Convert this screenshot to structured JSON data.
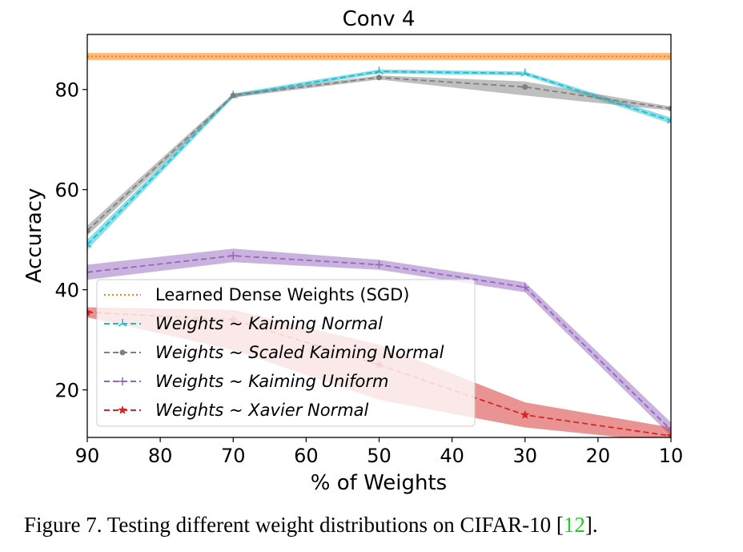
{
  "caption": {
    "prefix": "Figure 7. Testing different weight distributions on CIFAR-10 [",
    "ref": "12",
    "suffix": "]."
  },
  "chart_data": {
    "type": "line",
    "title": "Conv 4",
    "xlabel": "% of Weights",
    "ylabel": "Accuracy",
    "x_reversed": true,
    "xlim": [
      90,
      10
    ],
    "ylim": [
      10.5,
      91
    ],
    "xticks": [
      90,
      80,
      70,
      60,
      50,
      40,
      30,
      20,
      10
    ],
    "yticks": [
      20,
      40,
      60,
      80
    ],
    "legend_position": "lower-left",
    "grid": false,
    "reference_line": {
      "name": "Learned Dense Weights (SGD)",
      "value": 86.6,
      "band": [
        85.9,
        87.3
      ],
      "color": "#ff7f0e",
      "style": "dotted"
    },
    "series": [
      {
        "name": "Weights ~ Kaiming Normal",
        "color": "#17becf",
        "marker": "tri",
        "x": [
          90,
          70,
          50,
          30,
          10
        ],
        "values": [
          49.0,
          78.8,
          83.6,
          83.2,
          73.8
        ],
        "lower": [
          48.0,
          78.4,
          83.2,
          82.8,
          73.2
        ],
        "upper": [
          50.0,
          79.2,
          84.0,
          83.6,
          74.4
        ]
      },
      {
        "name": "Weights ~ Scaled Kaiming Normal",
        "color": "#7f7f7f",
        "marker": "circle",
        "x": [
          90,
          70,
          50,
          30,
          10
        ],
        "values": [
          51.8,
          78.8,
          82.4,
          80.5,
          76.2
        ],
        "lower": [
          50.8,
          78.4,
          82.0,
          78.8,
          75.8
        ],
        "upper": [
          52.8,
          79.2,
          82.8,
          81.6,
          76.6
        ]
      },
      {
        "name": "Weights ~ Kaiming Uniform",
        "color": "#9467bd",
        "marker": "plus",
        "x": [
          90,
          70,
          50,
          30,
          10
        ],
        "values": [
          43.5,
          46.8,
          45.0,
          40.5,
          12.0
        ],
        "lower": [
          42.0,
          45.5,
          44.0,
          39.5,
          10.8
        ],
        "upper": [
          45.0,
          48.2,
          46.0,
          41.5,
          13.5
        ]
      },
      {
        "name": "Weights ~ Xavier Normal",
        "color": "#d62728",
        "marker": "star",
        "x": [
          90,
          70,
          50,
          30,
          10
        ],
        "values": [
          35.5,
          34.0,
          25.0,
          15.0,
          10.8
        ],
        "lower": [
          34.5,
          28.0,
          18.0,
          12.5,
          9.5
        ],
        "upper": [
          36.5,
          36.0,
          29.0,
          17.5,
          12.5
        ]
      }
    ]
  }
}
